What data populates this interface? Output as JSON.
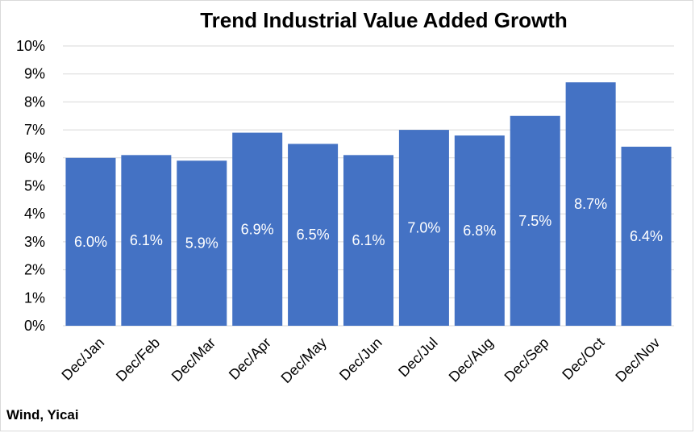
{
  "chart_data": {
    "type": "bar",
    "title": "Trend Industrial Value Added Growth",
    "xlabel": "",
    "ylabel": "",
    "categories": [
      "Dec/Jan",
      "Dec/Feb",
      "Dec/Mar",
      "Dec/Apr",
      "Dec/May",
      "Dec/Jun",
      "Dec/Jul",
      "Dec/Aug",
      "Dec/Sep",
      "Dec/Oct",
      "Dec/Nov"
    ],
    "values": [
      6.0,
      6.1,
      5.9,
      6.9,
      6.5,
      6.1,
      7.0,
      6.8,
      7.5,
      8.7,
      6.4
    ],
    "data_labels": [
      "6.0%",
      "6.1%",
      "5.9%",
      "6.9%",
      "6.5%",
      "6.1%",
      "7.0%",
      "6.8%",
      "7.5%",
      "8.7%",
      "6.4%"
    ],
    "y_ticks": [
      "0%",
      "1%",
      "2%",
      "3%",
      "4%",
      "5%",
      "6%",
      "7%",
      "8%",
      "9%",
      "10%"
    ],
    "ylim": [
      0,
      10
    ],
    "grid": true,
    "bar_color": "#4472C4",
    "grid_color": "#d9d9d9"
  },
  "source": "Wind, Yicai"
}
